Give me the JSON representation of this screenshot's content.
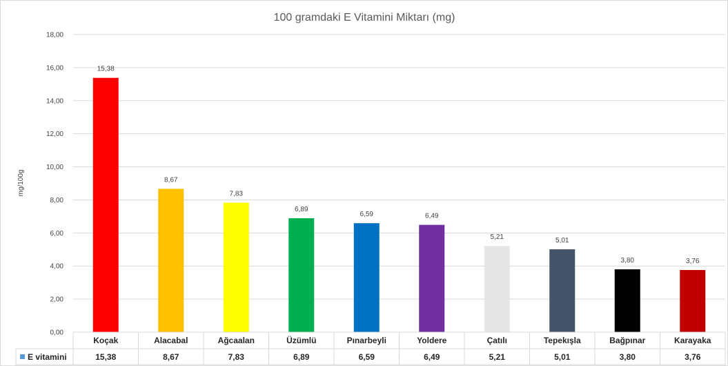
{
  "chart_data": {
    "type": "bar",
    "title": "100 gramdaki E Vitamini Miktarı (mg)",
    "ylabel": "mg/100g",
    "xlabel": "",
    "ylim": [
      0,
      18
    ],
    "yticks": [
      "0,00",
      "2,00",
      "4,00",
      "6,00",
      "8,00",
      "10,00",
      "12,00",
      "14,00",
      "16,00",
      "18,00"
    ],
    "grid": true,
    "legend": "data-table",
    "categories": [
      "Koçak",
      "Alacabal",
      "Ağcaalan",
      "Üzümlü",
      "Pınarbeyli",
      "Yoldere",
      "Çatılı",
      "Tepekışla",
      "Bağpınar",
      "Karayaka"
    ],
    "series": [
      {
        "name": "E vitamini",
        "values": [
          15.38,
          8.67,
          7.83,
          6.89,
          6.59,
          6.49,
          5.21,
          5.01,
          3.8,
          3.76
        ],
        "labels": [
          "15,38",
          "8,67",
          "7,83",
          "6,89",
          "6,59",
          "6,49",
          "5,21",
          "5,01",
          "3,80",
          "3,76"
        ],
        "legend_color": "#5b9bd5",
        "colors": [
          "#ff0000",
          "#ffc000",
          "#ffff00",
          "#00b050",
          "#0070c0",
          "#7030a0",
          "#e7e6e6",
          "#44546a",
          "#000000",
          "#c00000"
        ]
      }
    ]
  }
}
